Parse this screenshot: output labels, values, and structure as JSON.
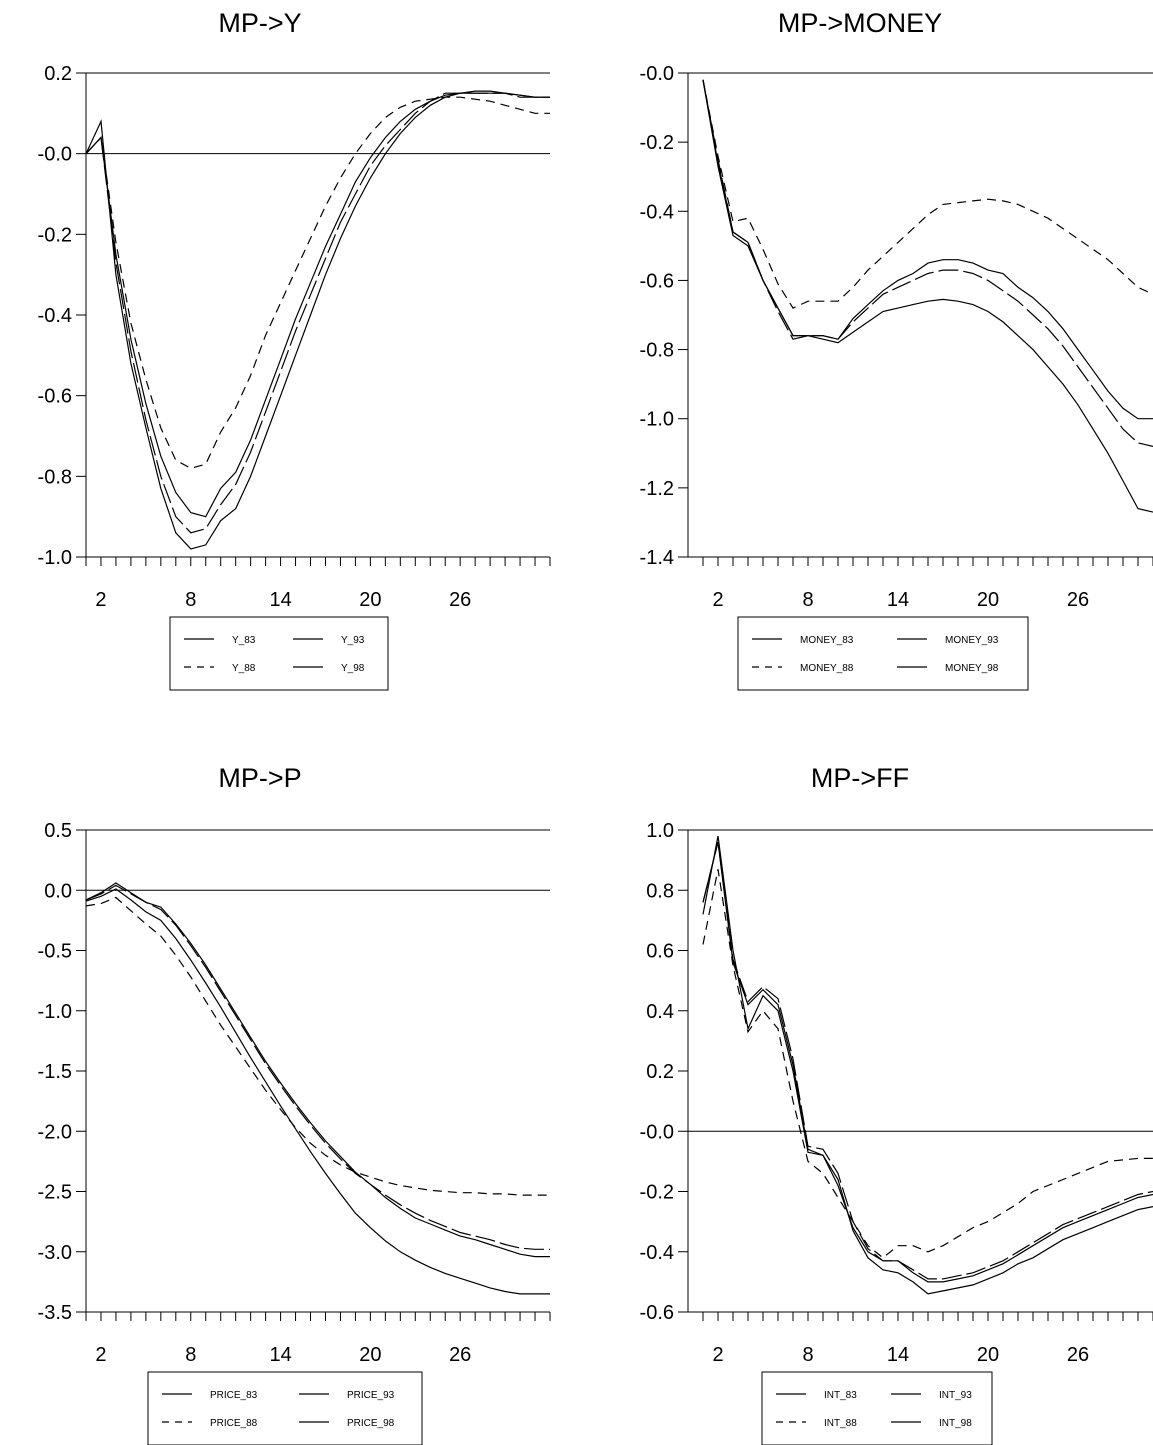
{
  "chart_data": [
    {
      "type": "line",
      "title": "MP->Y",
      "xlabel": "",
      "ylabel": "",
      "x": [
        1,
        2,
        3,
        4,
        5,
        6,
        7,
        8,
        9,
        10,
        11,
        12,
        13,
        14,
        15,
        16,
        17,
        18,
        19,
        20,
        21,
        22,
        23,
        24,
        25,
        26,
        27,
        28,
        29,
        30,
        31,
        32
      ],
      "xticks": [
        2,
        8,
        14,
        20,
        26
      ],
      "xticklabels": [
        "2",
        "8",
        "14",
        "20",
        "26"
      ],
      "xlim": [
        1,
        32
      ],
      "ylim": [
        -1.0,
        0.2
      ],
      "yticks": [
        0.2,
        0.0,
        -0.2,
        -0.4,
        -0.6,
        -0.8,
        -1.0
      ],
      "yticklabels": [
        "0.2",
        "-0.0",
        "-0.2",
        "-0.4",
        "-0.6",
        "-0.8",
        "-1.0"
      ],
      "zero_line": true,
      "series": [
        {
          "name": "Y_83",
          "dash": "solid",
          "values": [
            0.0,
            0.08,
            -0.3,
            -0.52,
            -0.68,
            -0.83,
            -0.94,
            -0.98,
            -0.97,
            -0.91,
            -0.88,
            -0.8,
            -0.7,
            -0.6,
            -0.5,
            -0.4,
            -0.3,
            -0.21,
            -0.13,
            -0.06,
            0.0,
            0.05,
            0.09,
            0.12,
            0.14,
            0.15,
            0.155,
            0.155,
            0.15,
            0.145,
            0.14,
            0.14
          ]
        },
        {
          "name": "Y_88",
          "dash": "dashed",
          "values": [
            0.0,
            0.04,
            -0.22,
            -0.42,
            -0.56,
            -0.68,
            -0.76,
            -0.78,
            -0.77,
            -0.69,
            -0.63,
            -0.55,
            -0.45,
            -0.37,
            -0.29,
            -0.21,
            -0.13,
            -0.06,
            0.0,
            0.05,
            0.09,
            0.115,
            0.13,
            0.135,
            0.14,
            0.14,
            0.135,
            0.13,
            0.12,
            0.11,
            0.1,
            0.1
          ]
        },
        {
          "name": "Y_93",
          "dash": "longdash",
          "values": [
            0.0,
            0.04,
            -0.27,
            -0.49,
            -0.66,
            -0.8,
            -0.9,
            -0.94,
            -0.93,
            -0.87,
            -0.82,
            -0.74,
            -0.64,
            -0.54,
            -0.44,
            -0.35,
            -0.26,
            -0.17,
            -0.1,
            -0.03,
            0.02,
            0.06,
            0.1,
            0.13,
            0.15,
            0.15,
            0.15,
            0.15,
            0.15,
            0.14,
            0.14,
            0.14
          ]
        },
        {
          "name": "Y_98",
          "dash": "solid",
          "values": [
            0.0,
            0.04,
            -0.25,
            -0.46,
            -0.62,
            -0.75,
            -0.84,
            -0.89,
            -0.9,
            -0.83,
            -0.79,
            -0.71,
            -0.61,
            -0.51,
            -0.41,
            -0.32,
            -0.23,
            -0.15,
            -0.07,
            -0.01,
            0.04,
            0.08,
            0.11,
            0.13,
            0.145,
            0.15,
            0.15,
            0.15,
            0.15,
            0.145,
            0.14,
            0.14
          ]
        }
      ],
      "legend": {
        "placement": "bottom",
        "entries": [
          "Y_83",
          "Y_93",
          "Y_88",
          "Y_98"
        ]
      }
    },
    {
      "type": "line",
      "title": "MP->MONEY",
      "xlabel": "",
      "ylabel": "",
      "x": [
        1,
        2,
        3,
        4,
        5,
        6,
        7,
        8,
        9,
        10,
        11,
        12,
        13,
        14,
        15,
        16,
        17,
        18,
        19,
        20,
        21,
        22,
        23,
        24,
        25,
        26,
        27,
        28,
        29,
        30,
        31,
        32
      ],
      "xticks": [
        2,
        8,
        14,
        20,
        26
      ],
      "xticklabels": [
        "2",
        "8",
        "14",
        "20",
        "26"
      ],
      "xlim": [
        0,
        31
      ],
      "ylim": [
        -1.4,
        0.0
      ],
      "yticks": [
        0.0,
        -0.2,
        -0.4,
        -0.6,
        -0.8,
        -1.0,
        -1.2,
        -1.4
      ],
      "yticklabels": [
        "-0.0",
        "-0.2",
        "-0.4",
        "-0.6",
        "-0.8",
        "-1.0",
        "-1.2",
        "-1.4"
      ],
      "zero_line": false,
      "series": [
        {
          "name": "MONEY_83",
          "dash": "solid",
          "values": [
            -0.02,
            -0.27,
            -0.47,
            -0.5,
            -0.6,
            -0.68,
            -0.76,
            -0.76,
            -0.77,
            -0.78,
            -0.75,
            -0.72,
            -0.69,
            -0.68,
            -0.67,
            -0.66,
            -0.655,
            -0.66,
            -0.67,
            -0.69,
            -0.72,
            -0.76,
            -0.8,
            -0.85,
            -0.9,
            -0.96,
            -1.03,
            -1.1,
            -1.18,
            -1.26,
            -1.27,
            -1.28
          ]
        },
        {
          "name": "MONEY_88",
          "dash": "dashed",
          "values": [
            -0.02,
            -0.24,
            -0.43,
            -0.42,
            -0.51,
            -0.61,
            -0.68,
            -0.66,
            -0.66,
            -0.66,
            -0.62,
            -0.57,
            -0.53,
            -0.49,
            -0.45,
            -0.41,
            -0.38,
            -0.375,
            -0.37,
            -0.365,
            -0.37,
            -0.38,
            -0.4,
            -0.42,
            -0.45,
            -0.48,
            -0.51,
            -0.54,
            -0.58,
            -0.62,
            -0.64,
            -0.64
          ]
        },
        {
          "name": "MONEY_93",
          "dash": "longdash",
          "values": [
            -0.02,
            -0.25,
            -0.46,
            -0.49,
            -0.6,
            -0.69,
            -0.77,
            -0.76,
            -0.76,
            -0.77,
            -0.72,
            -0.68,
            -0.64,
            -0.62,
            -0.6,
            -0.58,
            -0.57,
            -0.57,
            -0.58,
            -0.6,
            -0.63,
            -0.66,
            -0.7,
            -0.74,
            -0.79,
            -0.85,
            -0.91,
            -0.97,
            -1.03,
            -1.07,
            -1.08,
            -1.08
          ]
        },
        {
          "name": "MONEY_98",
          "dash": "solid",
          "values": [
            -0.02,
            -0.26,
            -0.46,
            -0.49,
            -0.6,
            -0.68,
            -0.76,
            -0.76,
            -0.76,
            -0.77,
            -0.71,
            -0.67,
            -0.63,
            -0.6,
            -0.58,
            -0.55,
            -0.54,
            -0.54,
            -0.55,
            -0.57,
            -0.58,
            -0.62,
            -0.65,
            -0.69,
            -0.74,
            -0.8,
            -0.86,
            -0.92,
            -0.97,
            -1.0,
            -1.0,
            -1.0
          ]
        }
      ],
      "legend": {
        "placement": "bottom",
        "entries": [
          "MONEY_83",
          "MONEY_93",
          "MONEY_88",
          "MONEY_98"
        ]
      }
    },
    {
      "type": "line",
      "title": "MP->P",
      "xlabel": "",
      "ylabel": "",
      "x": [
        1,
        2,
        3,
        4,
        5,
        6,
        7,
        8,
        9,
        10,
        11,
        12,
        13,
        14,
        15,
        16,
        17,
        18,
        19,
        20,
        21,
        22,
        23,
        24,
        25,
        26,
        27,
        28,
        29,
        30,
        31,
        32
      ],
      "xticks": [
        2,
        8,
        14,
        20,
        26
      ],
      "xticklabels": [
        "2",
        "8",
        "14",
        "20",
        "26"
      ],
      "xlim": [
        1,
        32
      ],
      "ylim": [
        -3.5,
        0.5
      ],
      "yticks": [
        0.5,
        0.0,
        -0.5,
        -1.0,
        -1.5,
        -2.0,
        -2.5,
        -3.0,
        -3.5
      ],
      "yticklabels": [
        "0.5",
        "0.0",
        "-0.5",
        "-1.0",
        "-1.5",
        "-2.0",
        "-2.5",
        "-3.0",
        "-3.5"
      ],
      "zero_line": true,
      "series": [
        {
          "name": "PRICE_83",
          "dash": "solid",
          "values": [
            -0.08,
            -0.02,
            0.06,
            -0.02,
            -0.1,
            -0.14,
            -0.28,
            -0.44,
            -0.62,
            -0.82,
            -1.02,
            -1.22,
            -1.42,
            -1.6,
            -1.77,
            -1.93,
            -2.08,
            -2.21,
            -2.34,
            -2.44,
            -2.55,
            -2.64,
            -2.72,
            -2.77,
            -2.82,
            -2.87,
            -2.9,
            -2.94,
            -2.98,
            -3.02,
            -3.04,
            -3.04
          ]
        },
        {
          "name": "PRICE_88",
          "dash": "dashed",
          "values": [
            -0.13,
            -0.11,
            -0.06,
            -0.17,
            -0.28,
            -0.38,
            -0.54,
            -0.72,
            -0.92,
            -1.12,
            -1.3,
            -1.48,
            -1.66,
            -1.82,
            -1.97,
            -2.1,
            -2.2,
            -2.28,
            -2.34,
            -2.38,
            -2.42,
            -2.45,
            -2.47,
            -2.49,
            -2.5,
            -2.51,
            -2.51,
            -2.52,
            -2.52,
            -2.53,
            -2.53,
            -2.53
          ]
        },
        {
          "name": "PRICE_93",
          "dash": "longdash",
          "values": [
            -0.08,
            -0.03,
            0.04,
            -0.03,
            -0.1,
            -0.16,
            -0.29,
            -0.46,
            -0.64,
            -0.84,
            -1.04,
            -1.24,
            -1.44,
            -1.62,
            -1.79,
            -1.95,
            -2.1,
            -2.23,
            -2.35,
            -2.44,
            -2.53,
            -2.61,
            -2.68,
            -2.74,
            -2.79,
            -2.84,
            -2.87,
            -2.9,
            -2.94,
            -2.97,
            -2.98,
            -2.98
          ]
        },
        {
          "name": "PRICE_98",
          "dash": "solid",
          "values": [
            -0.09,
            -0.05,
            0.01,
            -0.08,
            -0.18,
            -0.25,
            -0.4,
            -0.58,
            -0.77,
            -0.97,
            -1.18,
            -1.39,
            -1.59,
            -1.79,
            -1.98,
            -2.17,
            -2.35,
            -2.52,
            -2.68,
            -2.8,
            -2.91,
            -3.0,
            -3.07,
            -3.13,
            -3.18,
            -3.22,
            -3.26,
            -3.3,
            -3.33,
            -3.35,
            -3.35,
            -3.35
          ]
        }
      ],
      "legend": {
        "placement": "bottom",
        "entries": [
          "PRICE_83",
          "PRICE_93",
          "PRICE_88",
          "PRICE_98"
        ]
      }
    },
    {
      "type": "line",
      "title": "MP->FF",
      "xlabel": "",
      "ylabel": "",
      "x": [
        1,
        2,
        3,
        4,
        5,
        6,
        7,
        8,
        9,
        10,
        11,
        12,
        13,
        14,
        15,
        16,
        17,
        18,
        19,
        20,
        21,
        22,
        23,
        24,
        25,
        26,
        27,
        28,
        29,
        30,
        31,
        32
      ],
      "xticks": [
        2,
        8,
        14,
        20,
        26
      ],
      "xticklabels": [
        "2",
        "8",
        "14",
        "20",
        "26"
      ],
      "xlim": [
        0,
        31
      ],
      "ylim": [
        -0.6,
        1.0
      ],
      "yticks": [
        1.0,
        0.8,
        0.6,
        0.4,
        0.2,
        0.0,
        -0.2,
        -0.4,
        -0.6
      ],
      "yticklabels": [
        "1.0",
        "0.8",
        "0.6",
        "0.4",
        "0.2",
        "-0.0",
        "-0.2",
        "-0.4",
        "-0.6"
      ],
      "zero_line": true,
      "series": [
        {
          "name": "INT_83",
          "dash": "solid",
          "values": [
            0.72,
            0.98,
            0.6,
            0.34,
            0.45,
            0.4,
            0.2,
            -0.07,
            -0.08,
            -0.18,
            -0.32,
            -0.4,
            -0.43,
            -0.43,
            -0.47,
            -0.5,
            -0.5,
            -0.49,
            -0.48,
            -0.46,
            -0.44,
            -0.41,
            -0.38,
            -0.35,
            -0.32,
            -0.3,
            -0.28,
            -0.26,
            -0.24,
            -0.22,
            -0.21,
            -0.21
          ]
        },
        {
          "name": "INT_88",
          "dash": "dashed",
          "values": [
            0.62,
            0.87,
            0.55,
            0.33,
            0.4,
            0.34,
            0.1,
            -0.1,
            -0.14,
            -0.22,
            -0.3,
            -0.38,
            -0.42,
            -0.38,
            -0.38,
            -0.4,
            -0.38,
            -0.35,
            -0.32,
            -0.3,
            -0.27,
            -0.24,
            -0.2,
            -0.18,
            -0.16,
            -0.14,
            -0.12,
            -0.1,
            -0.095,
            -0.09,
            -0.09,
            -0.09
          ]
        },
        {
          "name": "INT_93",
          "dash": "longdash",
          "values": [
            0.76,
            0.96,
            0.57,
            0.43,
            0.48,
            0.44,
            0.24,
            -0.05,
            -0.06,
            -0.14,
            -0.3,
            -0.39,
            -0.43,
            -0.43,
            -0.46,
            -0.49,
            -0.49,
            -0.48,
            -0.47,
            -0.45,
            -0.43,
            -0.4,
            -0.37,
            -0.34,
            -0.31,
            -0.29,
            -0.27,
            -0.25,
            -0.23,
            -0.21,
            -0.2,
            -0.2
          ]
        },
        {
          "name": "INT_98",
          "dash": "solid",
          "values": [
            0.76,
            0.96,
            0.56,
            0.42,
            0.47,
            0.42,
            0.22,
            -0.06,
            -0.08,
            -0.16,
            -0.33,
            -0.42,
            -0.46,
            -0.47,
            -0.5,
            -0.54,
            -0.53,
            -0.52,
            -0.51,
            -0.49,
            -0.47,
            -0.44,
            -0.42,
            -0.39,
            -0.36,
            -0.34,
            -0.32,
            -0.3,
            -0.28,
            -0.26,
            -0.25,
            -0.25
          ]
        }
      ],
      "legend": {
        "placement": "bottom",
        "entries": [
          "INT_83",
          "INT_93",
          "INT_88",
          "INT_98"
        ]
      }
    }
  ]
}
